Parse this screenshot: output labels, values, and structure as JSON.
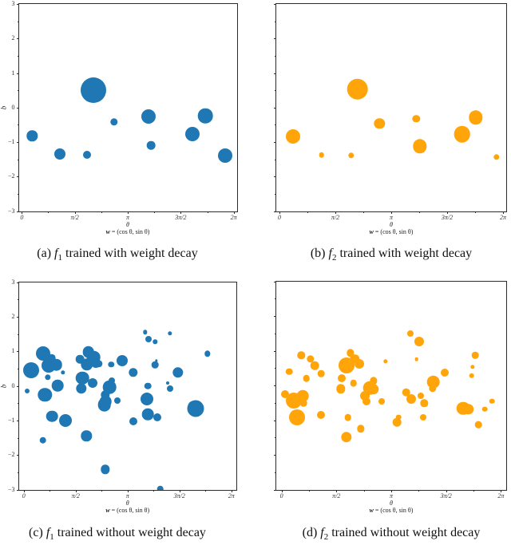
{
  "page": {
    "background": "#ffffff"
  },
  "colors": {
    "blue": "#1f77b4",
    "orange": "#ffa50a",
    "spine": "#2b2b2b"
  },
  "chart_data": [
    {
      "id": "a",
      "type": "scatter",
      "style": "bubble",
      "color": "#1f77b4",
      "xlim": [
        0,
        6.2832
      ],
      "ylim": [
        -3,
        3
      ],
      "xticks": [
        "0",
        "π/2",
        "π",
        "3π/2",
        "2π"
      ],
      "yticks": [
        "3",
        "2",
        "1",
        "0",
        "−1",
        "−2",
        "−3"
      ],
      "xlabel": "θ",
      "xlabel2_w": "w",
      "xlabel2_rest": " = (cos θ, sin θ)",
      "ylabel": "b",
      "grid": false,
      "legend": null,
      "caption": {
        "prefix": "(a) ",
        "f": "f",
        "sub": "1",
        "rest": " trained with weight decay"
      },
      "points": [
        [
          0.31,
          -0.82,
          6.7
        ],
        [
          1.14,
          -1.34,
          7
        ],
        [
          1.94,
          -1.36,
          5
        ],
        [
          2.12,
          0.51,
          16
        ],
        [
          2.74,
          -0.42,
          4.7
        ],
        [
          3.76,
          -0.27,
          9
        ],
        [
          3.84,
          -1.1,
          5.3
        ],
        [
          5.05,
          -0.78,
          9
        ],
        [
          5.44,
          -0.24,
          9.3
        ],
        [
          6.04,
          -1.39,
          9
        ]
      ]
    },
    {
      "id": "b",
      "type": "scatter",
      "style": "bubble",
      "color": "#ffa50a",
      "xlim": [
        0,
        6.2832
      ],
      "ylim": [
        -3,
        3
      ],
      "xticks": [
        "0",
        "π/2",
        "π",
        "3π/2",
        "2π"
      ],
      "yticks": [],
      "xlabel": "θ",
      "xlabel2_w": "w",
      "xlabel2_rest": " = (cos θ, sin θ)",
      "ylabel": "",
      "grid": false,
      "legend": null,
      "caption": {
        "prefix": "(b) ",
        "f": "f",
        "sub": "2",
        "rest": " trained with weight decay"
      },
      "points": [
        [
          0.37,
          -0.84,
          9
        ],
        [
          1.18,
          -1.37,
          3.3
        ],
        [
          2.02,
          -1.39,
          3.7
        ],
        [
          2.19,
          0.53,
          13.3
        ],
        [
          2.81,
          -0.47,
          6.7
        ],
        [
          3.84,
          -0.32,
          4.7
        ],
        [
          3.94,
          -1.12,
          8.7
        ],
        [
          5.13,
          -0.78,
          10.3
        ],
        [
          5.52,
          -0.29,
          8.7
        ],
        [
          6.1,
          -1.43,
          3.7
        ]
      ]
    },
    {
      "id": "c",
      "type": "scatter",
      "style": "bubble",
      "color": "#1f77b4",
      "xlim": [
        0,
        6.2832
      ],
      "ylim": [
        -3,
        3
      ],
      "xticks": [
        "0",
        "π/2",
        "π",
        "3π/2",
        "2π"
      ],
      "yticks": [
        "3",
        "2",
        "1",
        "0",
        "−1",
        "−2",
        "−3"
      ],
      "xlabel": "θ",
      "xlabel2_w": "w",
      "xlabel2_rest": " = (cos θ, sin θ)",
      "ylabel": "b",
      "grid": false,
      "legend": null,
      "caption": {
        "prefix": "(c) ",
        "f": "f",
        "sub": "1",
        "rest": " trained without weight decay"
      },
      "points": [
        [
          0.23,
          0.45,
          10
        ],
        [
          0.1,
          -0.16,
          3
        ],
        [
          0.58,
          0.93,
          9
        ],
        [
          0.64,
          -0.26,
          8.7
        ],
        [
          0.58,
          -1.57,
          4.3
        ],
        [
          0.73,
          0.24,
          3.7
        ],
        [
          0.84,
          0.8,
          5.3
        ],
        [
          0.76,
          0.58,
          9
        ],
        [
          0.99,
          0.61,
          7.3
        ],
        [
          1.02,
          0.01,
          7.3
        ],
        [
          0.86,
          -0.88,
          7.3
        ],
        [
          1.18,
          0.38,
          2.7
        ],
        [
          1.27,
          -1.0,
          8
        ],
        [
          1.7,
          0.77,
          5.3
        ],
        [
          1.96,
          0.98,
          7.3
        ],
        [
          1.91,
          0.61,
          7.7
        ],
        [
          2.11,
          0.83,
          8.3
        ],
        [
          2.18,
          0.66,
          6
        ],
        [
          2.26,
          0.64,
          4.7
        ],
        [
          1.77,
          0.23,
          8.3
        ],
        [
          2.08,
          0.08,
          6
        ],
        [
          1.74,
          -0.07,
          6.7
        ],
        [
          1.9,
          -1.45,
          6.7
        ],
        [
          2.46,
          -0.26,
          5.7
        ],
        [
          2.48,
          -0.45,
          7.3
        ],
        [
          2.44,
          -0.55,
          8.3
        ],
        [
          2.59,
          -0.04,
          8.3
        ],
        [
          2.66,
          0.16,
          4
        ],
        [
          2.65,
          0.61,
          3.7
        ],
        [
          2.46,
          -2.42,
          5.7
        ],
        [
          2.84,
          -0.42,
          4
        ],
        [
          2.98,
          0.72,
          7
        ],
        [
          3.31,
          0.39,
          5.7
        ],
        [
          3.32,
          -1.02,
          5
        ],
        [
          3.68,
          1.55,
          2.7
        ],
        [
          3.78,
          1.35,
          4
        ],
        [
          3.98,
          1.27,
          2.7
        ],
        [
          3.75,
          0.0,
          4.3
        ],
        [
          3.72,
          -0.37,
          8
        ],
        [
          3.76,
          -0.83,
          7.3
        ],
        [
          3.98,
          0.61,
          4.3
        ],
        [
          4.02,
          0.72,
          1.7
        ],
        [
          4.03,
          -0.9,
          5
        ],
        [
          4.13,
          -2.98,
          4.3
        ],
        [
          4.36,
          0.08,
          2
        ],
        [
          4.42,
          -0.09,
          4
        ],
        [
          4.42,
          1.51,
          2.7
        ],
        [
          4.67,
          0.39,
          6.7
        ],
        [
          5.13,
          -0.58,
          6.5
        ],
        [
          5.21,
          -0.66,
          10.5
        ],
        [
          5.56,
          0.93,
          3.7
        ]
      ]
    },
    {
      "id": "d",
      "type": "scatter",
      "style": "bubble",
      "color": "#ffa50a",
      "xlim": [
        0,
        6.2832
      ],
      "ylim": [
        -3,
        3
      ],
      "xticks": [
        "0",
        "π/2",
        "π",
        "3π/2",
        "2π"
      ],
      "yticks": [],
      "xlabel": "θ",
      "xlabel2_w": "w",
      "xlabel2_rest": " = (cos θ, sin θ)",
      "ylabel": "",
      "grid": false,
      "legend": null,
      "caption": {
        "prefix": "(d) ",
        "f": "f",
        "sub": "2",
        "rest": " trained without weight decay"
      },
      "points": [
        [
          0.1,
          -0.25,
          5
        ],
        [
          0.22,
          0.4,
          4.3
        ],
        [
          0.36,
          -0.43,
          10
        ],
        [
          0.45,
          -0.91,
          10
        ],
        [
          0.56,
          0.87,
          4.7
        ],
        [
          0.61,
          -0.3,
          7.3
        ],
        [
          0.63,
          -0.51,
          4.3
        ],
        [
          0.71,
          0.2,
          4.3
        ],
        [
          0.83,
          0.76,
          4.7
        ],
        [
          0.95,
          0.57,
          5.3
        ],
        [
          1.14,
          0.34,
          4.3
        ],
        [
          1.14,
          -0.85,
          5
        ],
        [
          1.72,
          0.2,
          5
        ],
        [
          1.7,
          -0.1,
          5.7
        ],
        [
          1.87,
          0.58,
          10
        ],
        [
          1.97,
          0.94,
          4.7
        ],
        [
          2.1,
          0.76,
          5.7
        ],
        [
          2.23,
          0.63,
          6
        ],
        [
          2.06,
          0.07,
          4.3
        ],
        [
          1.9,
          -0.92,
          4.3
        ],
        [
          1.86,
          -1.49,
          6.7
        ],
        [
          2.27,
          -1.25,
          4.7
        ],
        [
          2.38,
          -0.29,
          6
        ],
        [
          2.44,
          -0.47,
          5
        ],
        [
          2.53,
          -0.07,
          8.3
        ],
        [
          2.62,
          -0.11,
          6.7
        ],
        [
          2.64,
          0.13,
          4.7
        ],
        [
          2.86,
          -0.45,
          4
        ],
        [
          2.98,
          0.69,
          2.7
        ],
        [
          3.3,
          -1.06,
          5.3
        ],
        [
          3.35,
          -0.91,
          3.3
        ],
        [
          3.57,
          -0.2,
          5.3
        ],
        [
          3.7,
          1.49,
          4
        ],
        [
          3.72,
          -0.39,
          6
        ],
        [
          3.87,
          0.76,
          2.3
        ],
        [
          3.94,
          1.26,
          6
        ],
        [
          3.98,
          -0.3,
          4
        ],
        [
          4.05,
          -0.91,
          4
        ],
        [
          4.09,
          -0.51,
          4.7
        ],
        [
          4.35,
          0.1,
          8.3
        ],
        [
          4.33,
          -0.09,
          4.7
        ],
        [
          4.67,
          0.36,
          5
        ],
        [
          5.2,
          -0.66,
          8.3
        ],
        [
          5.34,
          -0.68,
          6.7
        ],
        [
          5.44,
          0.28,
          3.3
        ],
        [
          5.55,
          0.87,
          4.3
        ],
        [
          5.47,
          0.53,
          2.7
        ],
        [
          5.64,
          -1.13,
          4.3
        ],
        [
          5.82,
          -0.68,
          3.3
        ],
        [
          6.03,
          -0.45,
          3.3
        ]
      ]
    }
  ]
}
